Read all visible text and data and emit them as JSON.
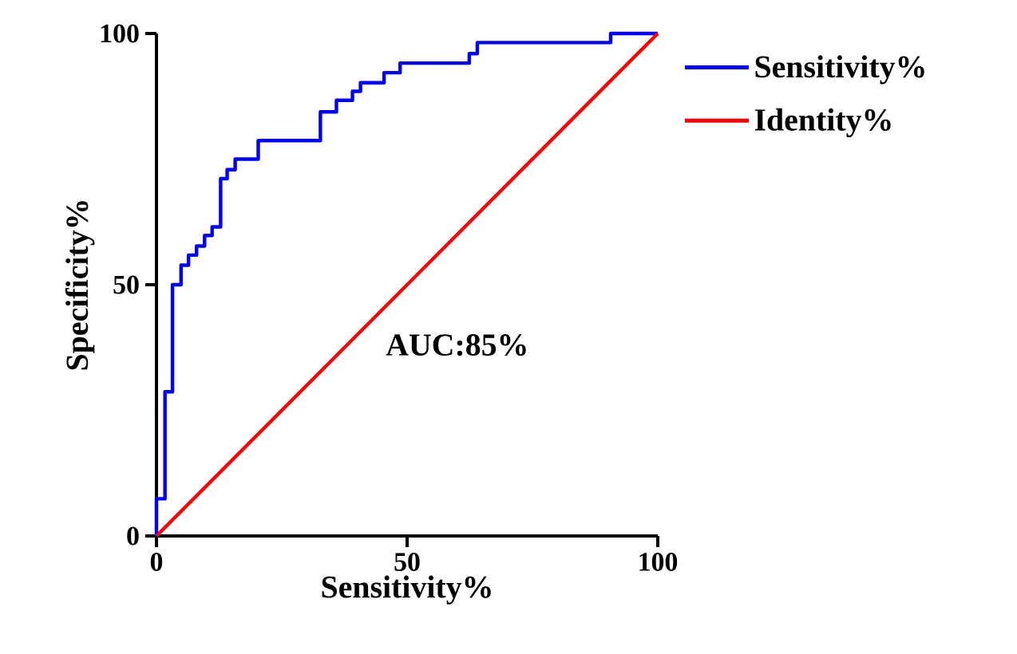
{
  "chart_data": {
    "type": "step",
    "xlabel": "Sensitivity%",
    "ylabel": "Specificity%",
    "xlim": [
      0,
      100
    ],
    "ylim": [
      0,
      100
    ],
    "xticks": [
      0,
      50,
      100
    ],
    "yticks": [
      0,
      50,
      100
    ],
    "legend": "top right",
    "grid": false,
    "annotations": [
      "AUC:85%"
    ],
    "series": [
      {
        "name": "Sensitivity%",
        "color": "#0000ff",
        "x": [
          0,
          0,
          1.7,
          3.2,
          4.9,
          6.4,
          8.0,
          9.6,
          11.1,
          12.8,
          14.1,
          15.7,
          20.3,
          32.7,
          35.9,
          39.1,
          40.7,
          45.4,
          48.6,
          62.4,
          64.0,
          90.6,
          100
        ],
        "values": [
          0,
          7.4,
          28.7,
          50,
          53.9,
          55.9,
          57.7,
          59.8,
          61.5,
          71.1,
          72.9,
          75,
          78.7,
          84.4,
          86.7,
          88.5,
          90.2,
          92.2,
          94.1,
          96.0,
          98.2,
          100,
          100
        ]
      },
      {
        "name": "Identity%",
        "type": "line",
        "color": "#ff0000",
        "x": [
          0,
          100
        ],
        "values": [
          0,
          100
        ]
      }
    ]
  }
}
